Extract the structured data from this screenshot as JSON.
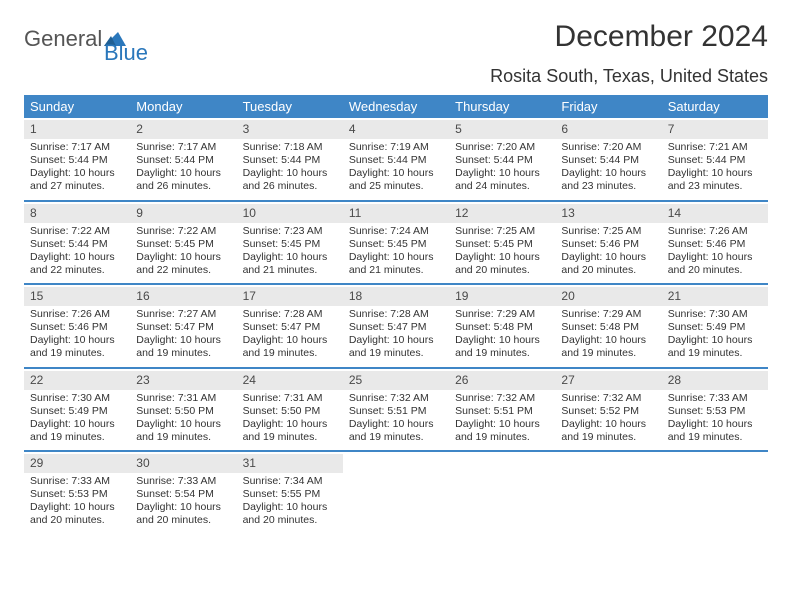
{
  "brand": {
    "part1": "General",
    "part2": "Blue"
  },
  "title": "December 2024",
  "location": "Rosita South, Texas, United States",
  "colors": {
    "header_bg": "#3f86c6",
    "header_text": "#ffffff",
    "daynum_bg": "#e9e9e9",
    "text": "#333333",
    "brand_gray": "#555555",
    "brand_blue": "#2a77bb",
    "page_bg": "#ffffff"
  },
  "columns": [
    "Sunday",
    "Monday",
    "Tuesday",
    "Wednesday",
    "Thursday",
    "Friday",
    "Saturday"
  ],
  "days": [
    {
      "n": 1,
      "sr": "7:17 AM",
      "ss": "5:44 PM",
      "dl": "10 hours and 27 minutes."
    },
    {
      "n": 2,
      "sr": "7:17 AM",
      "ss": "5:44 PM",
      "dl": "10 hours and 26 minutes."
    },
    {
      "n": 3,
      "sr": "7:18 AM",
      "ss": "5:44 PM",
      "dl": "10 hours and 26 minutes."
    },
    {
      "n": 4,
      "sr": "7:19 AM",
      "ss": "5:44 PM",
      "dl": "10 hours and 25 minutes."
    },
    {
      "n": 5,
      "sr": "7:20 AM",
      "ss": "5:44 PM",
      "dl": "10 hours and 24 minutes."
    },
    {
      "n": 6,
      "sr": "7:20 AM",
      "ss": "5:44 PM",
      "dl": "10 hours and 23 minutes."
    },
    {
      "n": 7,
      "sr": "7:21 AM",
      "ss": "5:44 PM",
      "dl": "10 hours and 23 minutes."
    },
    {
      "n": 8,
      "sr": "7:22 AM",
      "ss": "5:44 PM",
      "dl": "10 hours and 22 minutes."
    },
    {
      "n": 9,
      "sr": "7:22 AM",
      "ss": "5:45 PM",
      "dl": "10 hours and 22 minutes."
    },
    {
      "n": 10,
      "sr": "7:23 AM",
      "ss": "5:45 PM",
      "dl": "10 hours and 21 minutes."
    },
    {
      "n": 11,
      "sr": "7:24 AM",
      "ss": "5:45 PM",
      "dl": "10 hours and 21 minutes."
    },
    {
      "n": 12,
      "sr": "7:25 AM",
      "ss": "5:45 PM",
      "dl": "10 hours and 20 minutes."
    },
    {
      "n": 13,
      "sr": "7:25 AM",
      "ss": "5:46 PM",
      "dl": "10 hours and 20 minutes."
    },
    {
      "n": 14,
      "sr": "7:26 AM",
      "ss": "5:46 PM",
      "dl": "10 hours and 20 minutes."
    },
    {
      "n": 15,
      "sr": "7:26 AM",
      "ss": "5:46 PM",
      "dl": "10 hours and 19 minutes."
    },
    {
      "n": 16,
      "sr": "7:27 AM",
      "ss": "5:47 PM",
      "dl": "10 hours and 19 minutes."
    },
    {
      "n": 17,
      "sr": "7:28 AM",
      "ss": "5:47 PM",
      "dl": "10 hours and 19 minutes."
    },
    {
      "n": 18,
      "sr": "7:28 AM",
      "ss": "5:47 PM",
      "dl": "10 hours and 19 minutes."
    },
    {
      "n": 19,
      "sr": "7:29 AM",
      "ss": "5:48 PM",
      "dl": "10 hours and 19 minutes."
    },
    {
      "n": 20,
      "sr": "7:29 AM",
      "ss": "5:48 PM",
      "dl": "10 hours and 19 minutes."
    },
    {
      "n": 21,
      "sr": "7:30 AM",
      "ss": "5:49 PM",
      "dl": "10 hours and 19 minutes."
    },
    {
      "n": 22,
      "sr": "7:30 AM",
      "ss": "5:49 PM",
      "dl": "10 hours and 19 minutes."
    },
    {
      "n": 23,
      "sr": "7:31 AM",
      "ss": "5:50 PM",
      "dl": "10 hours and 19 minutes."
    },
    {
      "n": 24,
      "sr": "7:31 AM",
      "ss": "5:50 PM",
      "dl": "10 hours and 19 minutes."
    },
    {
      "n": 25,
      "sr": "7:32 AM",
      "ss": "5:51 PM",
      "dl": "10 hours and 19 minutes."
    },
    {
      "n": 26,
      "sr": "7:32 AM",
      "ss": "5:51 PM",
      "dl": "10 hours and 19 minutes."
    },
    {
      "n": 27,
      "sr": "7:32 AM",
      "ss": "5:52 PM",
      "dl": "10 hours and 19 minutes."
    },
    {
      "n": 28,
      "sr": "7:33 AM",
      "ss": "5:53 PM",
      "dl": "10 hours and 19 minutes."
    },
    {
      "n": 29,
      "sr": "7:33 AM",
      "ss": "5:53 PM",
      "dl": "10 hours and 20 minutes."
    },
    {
      "n": 30,
      "sr": "7:33 AM",
      "ss": "5:54 PM",
      "dl": "10 hours and 20 minutes."
    },
    {
      "n": 31,
      "sr": "7:34 AM",
      "ss": "5:55 PM",
      "dl": "10 hours and 20 minutes."
    }
  ],
  "labels": {
    "sunrise": "Sunrise:",
    "sunset": "Sunset:",
    "daylight": "Daylight:"
  },
  "layout": {
    "first_weekday_index": 0,
    "weeks": 5,
    "cols": 7
  }
}
